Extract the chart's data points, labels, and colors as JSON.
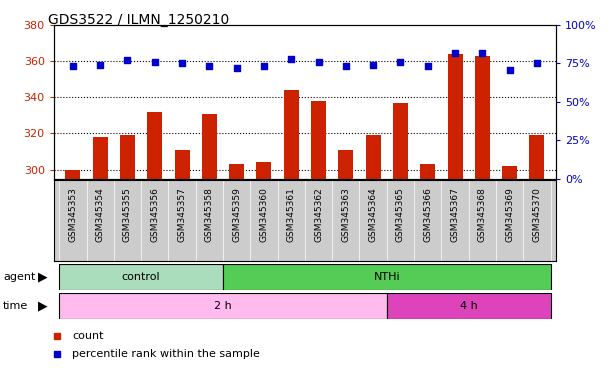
{
  "title": "GDS3522 / ILMN_1250210",
  "samples": [
    "GSM345353",
    "GSM345354",
    "GSM345355",
    "GSM345356",
    "GSM345357",
    "GSM345358",
    "GSM345359",
    "GSM345360",
    "GSM345361",
    "GSM345362",
    "GSM345363",
    "GSM345364",
    "GSM345365",
    "GSM345366",
    "GSM345367",
    "GSM345368",
    "GSM345369",
    "GSM345370"
  ],
  "counts": [
    300,
    318,
    319,
    332,
    311,
    331,
    303,
    304,
    344,
    338,
    311,
    319,
    337,
    303,
    364,
    363,
    302,
    319
  ],
  "percentiles": [
    73,
    74,
    77,
    76,
    75,
    73,
    72,
    73,
    78,
    76,
    73,
    74,
    76,
    73,
    82,
    82,
    71,
    75
  ],
  "ylim_left": [
    295,
    380
  ],
  "ylim_right": [
    0,
    100
  ],
  "yticks_left": [
    300,
    320,
    340,
    360,
    380
  ],
  "yticks_right": [
    0,
    25,
    50,
    75,
    100
  ],
  "bar_color": "#CC2200",
  "scatter_color": "#0000CC",
  "grid_color": "#000000",
  "bg_color": "#FFFFFF",
  "left_axis_color": "#CC2200",
  "right_axis_color": "#0000CC",
  "legend_count_color": "#CC2200",
  "legend_pct_color": "#0000CC",
  "control_color": "#AADDBB",
  "nthi_color": "#55CC55",
  "time_2h_color": "#FFBBEE",
  "time_4h_color": "#DD44BB",
  "xtick_bg_color": "#CCCCCC"
}
